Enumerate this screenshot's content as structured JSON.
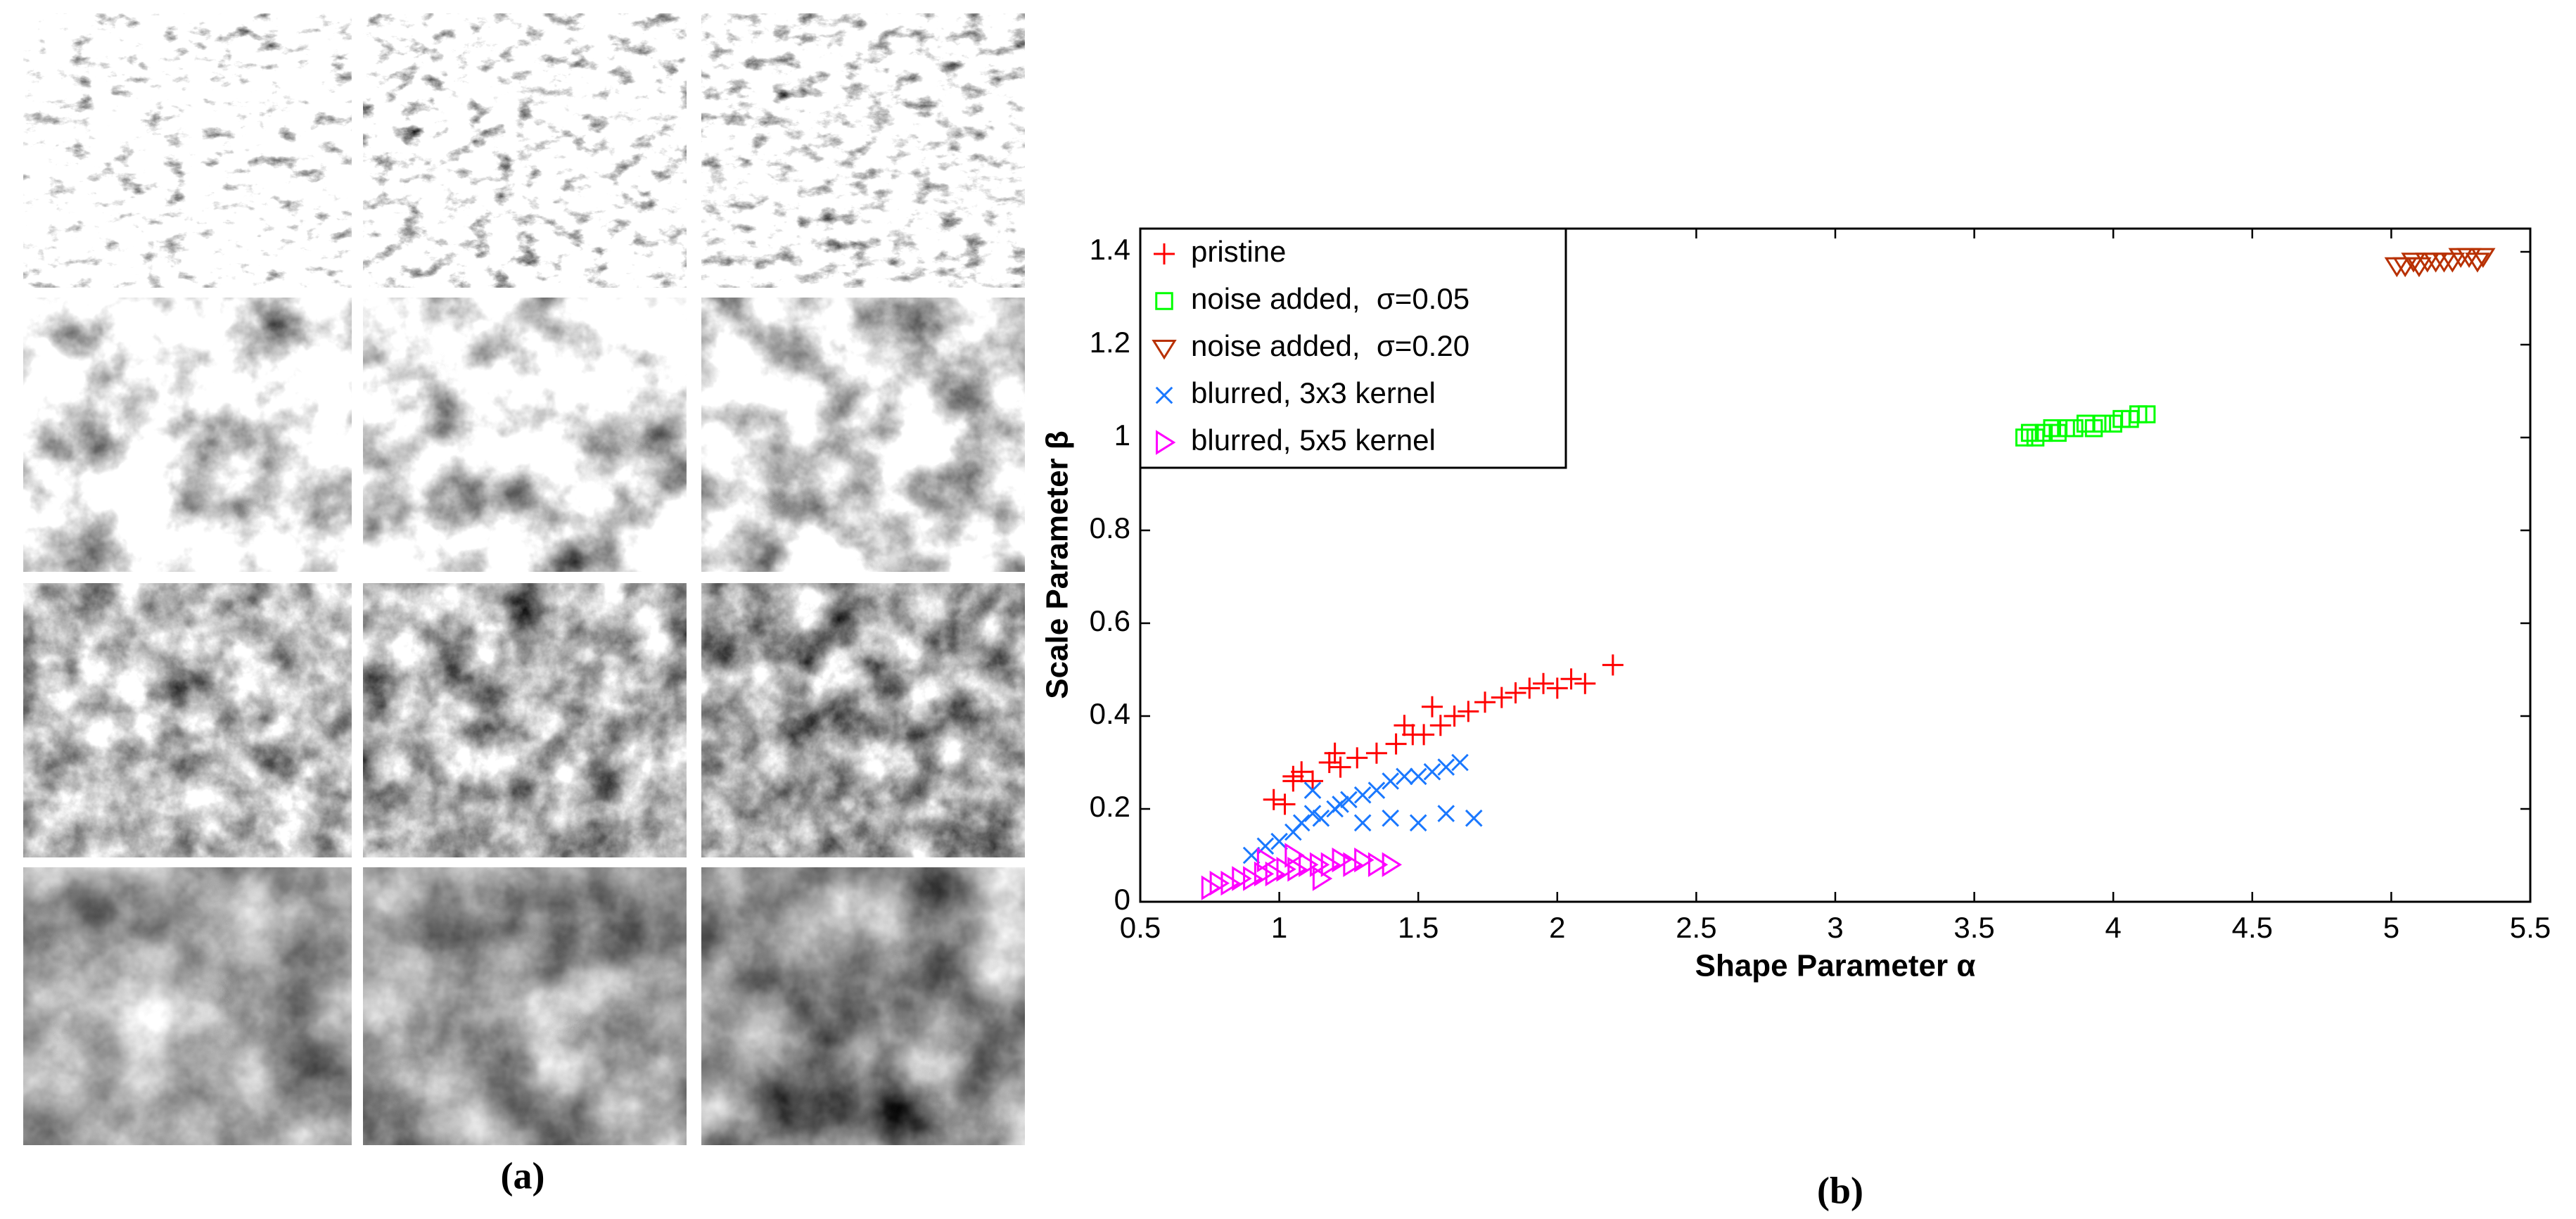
{
  "panel_labels": [
    "(a)",
    "(b)"
  ],
  "chart_data": {
    "type": "scatter",
    "xlabel": "Shape Parameter α",
    "ylabel": "Scale Parameter β",
    "xlim": [
      0.5,
      5.5
    ],
    "ylim": [
      0,
      1.45
    ],
    "xticks": [
      0.5,
      1,
      1.5,
      2,
      2.5,
      3,
      3.5,
      4,
      4.5,
      5,
      5.5
    ],
    "yticks": [
      0,
      0.2,
      0.4,
      0.6,
      0.8,
      1,
      1.2,
      1.4
    ],
    "grid": false,
    "legend": "upper left",
    "series": [
      {
        "name": "pristine",
        "color": "#ff0000",
        "marker": "plus",
        "x": [
          0.98,
          1.02,
          1.05,
          1.08,
          1.12,
          1.18,
          1.22,
          1.28,
          1.35,
          1.42,
          1.48,
          1.52,
          1.58,
          1.63,
          1.68,
          1.74,
          1.8,
          1.85,
          1.9,
          1.95,
          2.0,
          2.05,
          2.1,
          2.2,
          1.05,
          1.2,
          1.45,
          1.55
        ],
        "values": [
          0.22,
          0.21,
          0.27,
          0.28,
          0.26,
          0.3,
          0.29,
          0.31,
          0.32,
          0.34,
          0.36,
          0.36,
          0.38,
          0.4,
          0.41,
          0.43,
          0.44,
          0.45,
          0.46,
          0.47,
          0.46,
          0.48,
          0.47,
          0.51,
          0.26,
          0.32,
          0.38,
          0.42
        ]
      },
      {
        "name": "noise added,  σ=0.05",
        "color": "#00ff00",
        "marker": "square",
        "x": [
          3.68,
          3.7,
          3.72,
          3.75,
          3.78,
          3.8,
          3.83,
          3.86,
          3.9,
          3.93,
          3.96,
          4.0,
          4.03,
          4.06,
          4.09,
          4.12
        ],
        "values": [
          1.0,
          1.01,
          1.0,
          1.01,
          1.02,
          1.01,
          1.02,
          1.02,
          1.03,
          1.02,
          1.03,
          1.03,
          1.04,
          1.04,
          1.05,
          1.05
        ]
      },
      {
        "name": "noise added,  σ=0.20",
        "color": "#b83000",
        "marker": "triangle-down",
        "x": [
          5.02,
          5.05,
          5.08,
          5.1,
          5.13,
          5.16,
          5.19,
          5.22,
          5.25,
          5.28,
          5.31,
          5.33
        ],
        "values": [
          1.37,
          1.37,
          1.38,
          1.37,
          1.38,
          1.38,
          1.38,
          1.38,
          1.39,
          1.39,
          1.38,
          1.39
        ]
      },
      {
        "name": "blurred, 3x3 kernel",
        "color": "#1a78ff",
        "marker": "x",
        "x": [
          0.9,
          0.95,
          1.0,
          1.05,
          1.08,
          1.12,
          1.15,
          1.2,
          1.25,
          1.3,
          1.35,
          1.4,
          1.45,
          1.5,
          1.55,
          1.6,
          1.65,
          1.3,
          1.4,
          1.5,
          1.6,
          1.7,
          1.12,
          1.22
        ],
        "values": [
          0.1,
          0.12,
          0.13,
          0.15,
          0.17,
          0.19,
          0.18,
          0.2,
          0.22,
          0.23,
          0.24,
          0.26,
          0.27,
          0.27,
          0.28,
          0.29,
          0.3,
          0.17,
          0.18,
          0.17,
          0.19,
          0.18,
          0.24,
          0.21
        ]
      },
      {
        "name": "blurred, 5x5 kernel",
        "color": "#ff00ff",
        "marker": "triangle-right",
        "x": [
          0.75,
          0.78,
          0.82,
          0.86,
          0.9,
          0.94,
          0.98,
          1.02,
          1.06,
          1.1,
          1.14,
          1.18,
          1.22,
          1.26,
          1.3,
          1.35,
          1.4,
          0.95,
          1.05,
          1.15
        ],
        "values": [
          0.03,
          0.04,
          0.04,
          0.05,
          0.05,
          0.06,
          0.06,
          0.07,
          0.07,
          0.08,
          0.08,
          0.08,
          0.09,
          0.08,
          0.09,
          0.08,
          0.08,
          0.09,
          0.1,
          0.05
        ]
      }
    ]
  }
}
